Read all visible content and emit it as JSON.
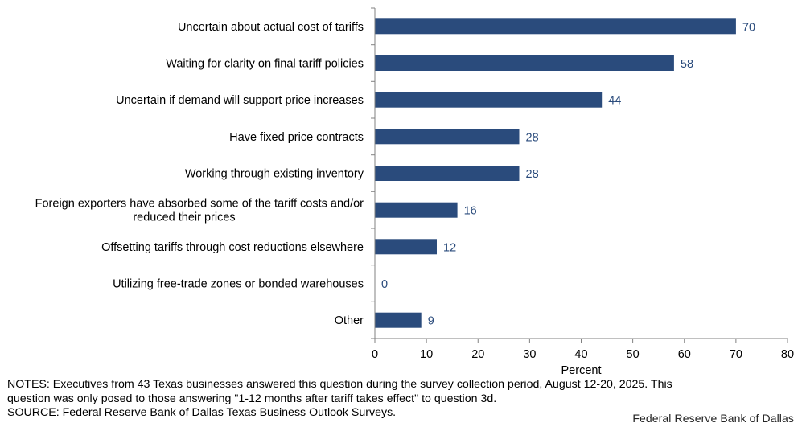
{
  "chart_data": {
    "type": "bar",
    "orientation": "horizontal",
    "categories": [
      "Uncertain about actual cost of tariffs",
      "Waiting for clarity on final tariff policies",
      "Uncertain if demand will support price increases",
      "Have fixed price contracts",
      "Working through existing inventory",
      "Foreign exporters have absorbed some of the tariff costs and/or reduced their prices",
      "Offsetting tariffs through cost reductions elsewhere",
      "Utilizing free-trade zones or bonded warehouses",
      "Other"
    ],
    "category_lines": [
      [
        "Uncertain about actual cost of tariffs"
      ],
      [
        "Waiting for clarity on final tariff policies"
      ],
      [
        "Uncertain if demand will support price increases"
      ],
      [
        "Have fixed price contracts"
      ],
      [
        "Working through existing inventory"
      ],
      [
        "Foreign exporters have absorbed some of the tariff costs and/or",
        "reduced their prices"
      ],
      [
        "Offsetting tariffs through cost reductions elsewhere"
      ],
      [
        "Utilizing free-trade zones or bonded warehouses"
      ],
      [
        "Other"
      ]
    ],
    "values": [
      70,
      58,
      44,
      28,
      28,
      16,
      12,
      0,
      9
    ],
    "xlabel": "Percent",
    "ylabel": "",
    "xlim": [
      0,
      80
    ],
    "xticks": [
      0,
      10,
      20,
      30,
      40,
      50,
      60,
      70,
      80
    ],
    "data_labels": true,
    "grid": false,
    "colors": {
      "bar": "#2a4b7c",
      "value_label": "#2a4b7c"
    }
  },
  "footer": {
    "notes_line1": "NOTES: Executives from 43 Texas businesses answered this question during the survey collection period, August 12-20, 2025. This",
    "notes_line2": "question was only posed to those answering \"1-12 months after tariff takes effect\" to question 3d.",
    "source": "SOURCE: Federal Reserve Bank of Dallas Texas Business Outlook Surveys.",
    "credit": "Federal Reserve Bank of Dallas"
  }
}
